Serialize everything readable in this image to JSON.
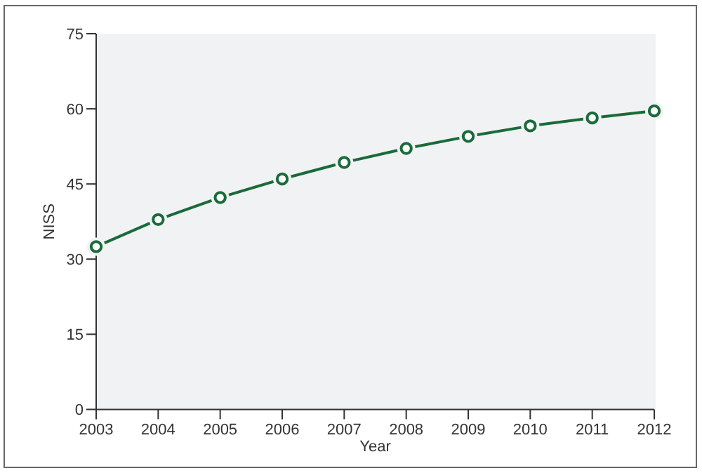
{
  "chart_data": {
    "type": "line",
    "xlabel": "Year",
    "ylabel": "NISS",
    "x": [
      2003,
      2004,
      2005,
      2006,
      2007,
      2008,
      2009,
      2010,
      2011,
      2012
    ],
    "series": [
      {
        "color": "#1a6b3a",
        "values": [
          32.5,
          37.9,
          42.3,
          46.0,
          49.3,
          52.1,
          54.5,
          56.6,
          58.2,
          59.6
        ]
      }
    ],
    "xlim": [
      2003,
      2012
    ],
    "xticks": [
      2003,
      2004,
      2005,
      2006,
      2007,
      2008,
      2009,
      2010,
      2011,
      2012
    ],
    "ylim": [
      0,
      75
    ],
    "yticks": [
      0,
      15,
      30,
      45,
      60,
      75
    ],
    "marker": "circle",
    "line_style": "solid"
  }
}
